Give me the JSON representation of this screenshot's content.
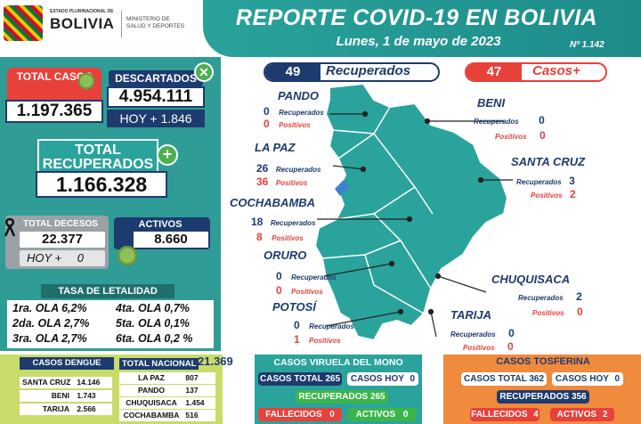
{
  "header": {
    "logo_state": "ESTADO PLURINACIONAL DE",
    "logo_country": "BOLIVIA",
    "ministry_line1": "MINISTERIO DE",
    "ministry_line2": "SALUD Y DEPORTES",
    "title": "REPORTE COVID-19 EN BOLIVIA",
    "date": "Lunes, 1 de mayo de 2023",
    "report_number": "Nº 1.142"
  },
  "summary": {
    "total_casos_label": "TOTAL CASOS",
    "total_casos_value": "1.197.365",
    "descartados_label": "DESCARTADOS",
    "descartados_value": "4.954.111",
    "descartados_hoy": "HOY + 1.846",
    "total_recuperados_label": "TOTAL RECUPERADOS",
    "total_recuperados_value": "1.166.328",
    "total_decesos_label": "TOTAL DECESOS",
    "total_decesos_value": "22.377",
    "decesos_hoy_label": "HOY +",
    "decesos_hoy_value": "0",
    "activos_label": "ACTIVOS",
    "activos_value": "8.660"
  },
  "letalidad": {
    "title": "TASA DE LETALIDAD",
    "items": [
      "1ra. OLA 6,2%",
      "4ta. OLA 0,7%",
      "2da. OLA 2,7%",
      "5ta. OLA 0,1%",
      "3ra. OLA 2,7%",
      "6ta. OLA 0,2 %"
    ]
  },
  "map": {
    "recuperados_count": "49",
    "recuperados_label": "Recuperados",
    "casos_count": "47",
    "casos_label": "Casos+",
    "rec_word": "Recuperados",
    "pos_word": "Positivos",
    "departments": {
      "pando": {
        "name": "PANDO",
        "rec": "0",
        "pos": "0"
      },
      "beni": {
        "name": "BENI",
        "rec": "0",
        "pos": "0"
      },
      "lapaz": {
        "name": "LA PAZ",
        "rec": "26",
        "pos": "36"
      },
      "santacruz": {
        "name": "SANTA CRUZ",
        "rec": "3",
        "pos": "2"
      },
      "cochabamba": {
        "name": "COCHABAMBA",
        "rec": "18",
        "pos": "8"
      },
      "oruro": {
        "name": "ORURO",
        "rec": "0",
        "pos": "0"
      },
      "chuquisaca": {
        "name": "CHUQUISACA",
        "rec": "2",
        "pos": "0"
      },
      "potosi": {
        "name": "POTOSÍ",
        "rec": "0",
        "pos": "1"
      },
      "tarija": {
        "name": "TARIJA",
        "rec": "0",
        "pos": "0"
      }
    },
    "colors": {
      "map_fill": "#2aa39c",
      "rec": "#1d3b6e",
      "pos": "#e8403b"
    }
  },
  "dengue": {
    "title": "CASOS DENGUE",
    "total_label": "TOTAL NACIONAL",
    "total_value": "21.369",
    "rows_left": [
      {
        "name": "SANTA CRUZ",
        "value": "14.146"
      },
      {
        "name": "BENI",
        "value": "1.743"
      },
      {
        "name": "TARIJA",
        "value": "2.566"
      }
    ],
    "rows_right": [
      {
        "name": "LA PAZ",
        "value": "807"
      },
      {
        "name": "PANDO",
        "value": "137"
      },
      {
        "name": "CHUQUISACA",
        "value": "1.454"
      },
      {
        "name": "COCHABAMBA",
        "value": "516"
      }
    ]
  },
  "viruela": {
    "title": "CASOS VIRUELA DEL MONO",
    "casos_total_label": "CASOS TOTAL",
    "casos_total_value": "265",
    "casos_hoy_label": "CASOS HOY",
    "casos_hoy_value": "0",
    "recuperados_label": "RECUPERADOS",
    "recuperados_value": "265",
    "fallecidos_label": "FALLECIDOS",
    "fallecidos_value": "0",
    "activos_label": "ACTIVOS",
    "activos_value": "0"
  },
  "tosferina": {
    "title": "CASOS TOSFERINA",
    "casos_total_label": "CASOS TOTAL",
    "casos_total_value": "362",
    "casos_hoy_label": "CASOS HOY",
    "casos_hoy_value": "0",
    "recuperados_label": "RECUPERADOS",
    "recuperados_value": "356",
    "fallecidos_label": "FALLECIDOS",
    "fallecidos_value": "4",
    "activos_label": "ACTIVOS",
    "activos_value": "2"
  }
}
